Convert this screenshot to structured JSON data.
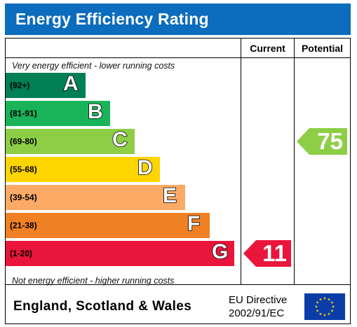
{
  "title": "Energy Efficiency Rating",
  "columns": {
    "current": "Current",
    "potential": "Potential"
  },
  "top_note": "Very energy efficient - lower running costs",
  "bottom_note": "Not energy efficient - higher running costs",
  "footer": {
    "region": "England, Scotland & Wales",
    "directive_line1": "EU Directive",
    "directive_line2": "2002/91/EC"
  },
  "colors": {
    "header": "#0c6cbd",
    "eu_flag": "#0a3da8",
    "eu_stars": "#ffd400"
  },
  "chart_data": {
    "type": "bar",
    "categories": [
      "(92+)",
      "(81-91)",
      "(69-80)",
      "(55-68)",
      "(39-54)",
      "(21-38)",
      "(1-20)"
    ],
    "bands": [
      {
        "letter": "A",
        "range": "(92+)",
        "color": "#008054"
      },
      {
        "letter": "B",
        "range": "(81-91)",
        "color": "#19b459"
      },
      {
        "letter": "C",
        "range": "(69-80)",
        "color": "#8dce46"
      },
      {
        "letter": "D",
        "range": "(55-68)",
        "color": "#ffd500"
      },
      {
        "letter": "E",
        "range": "(39-54)",
        "color": "#fcaa65"
      },
      {
        "letter": "F",
        "range": "(21-38)",
        "color": "#ef8023"
      },
      {
        "letter": "G",
        "range": "(1-20)",
        "color": "#e9153b"
      }
    ],
    "current": {
      "value": 11,
      "band": "G"
    },
    "potential": {
      "value": 75,
      "band": "C"
    }
  }
}
